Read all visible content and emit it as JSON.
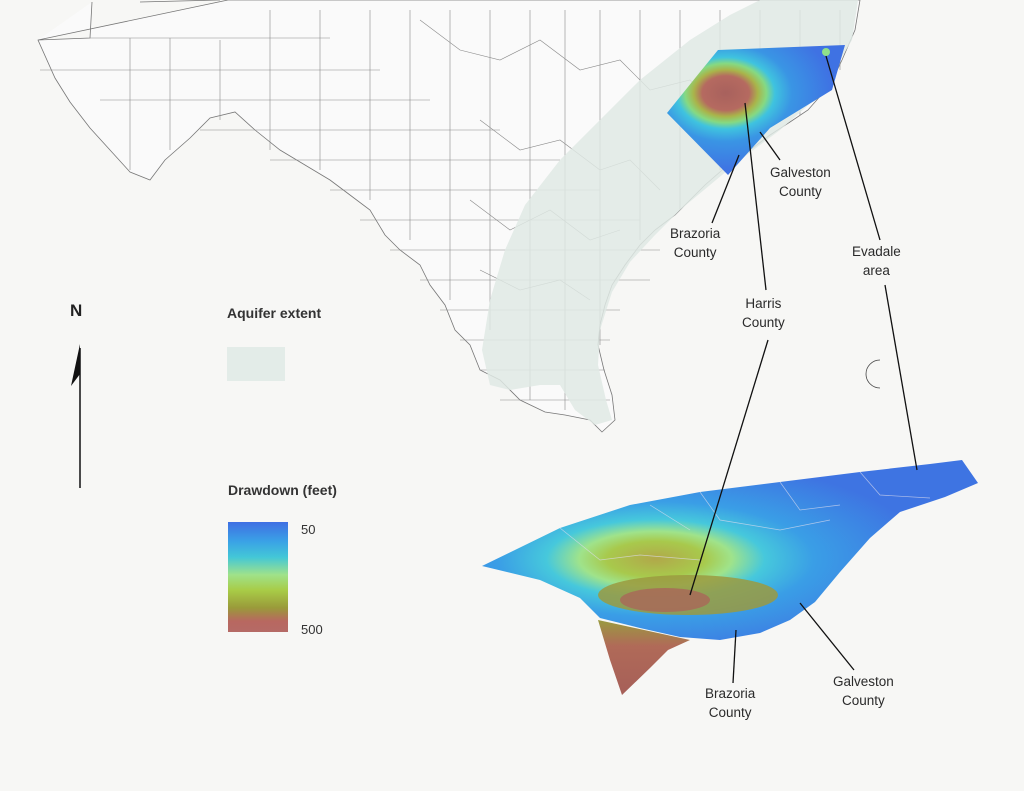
{
  "legend": {
    "north": "N",
    "aquifer_title": "Aquifer extent",
    "drawdown_title": "Drawdown (feet)",
    "drawdown_min": "50",
    "drawdown_max": "500",
    "colors": {
      "aquifer": "#e3ece8",
      "low": "#3f6fe3",
      "mid_low": "#43c7d7",
      "mid": "#a8cc47",
      "high": "#b56a66"
    }
  },
  "labels": {
    "galveston_top": [
      "Galveston",
      "County"
    ],
    "brazoria_top": [
      "Brazoria",
      "County"
    ],
    "evadale": [
      "Evadale",
      "area"
    ],
    "harris": [
      "Harris",
      "County"
    ],
    "brazoria_bottom": [
      "Brazoria",
      "County"
    ],
    "galveston_bottom": [
      "Galveston",
      "County"
    ]
  }
}
